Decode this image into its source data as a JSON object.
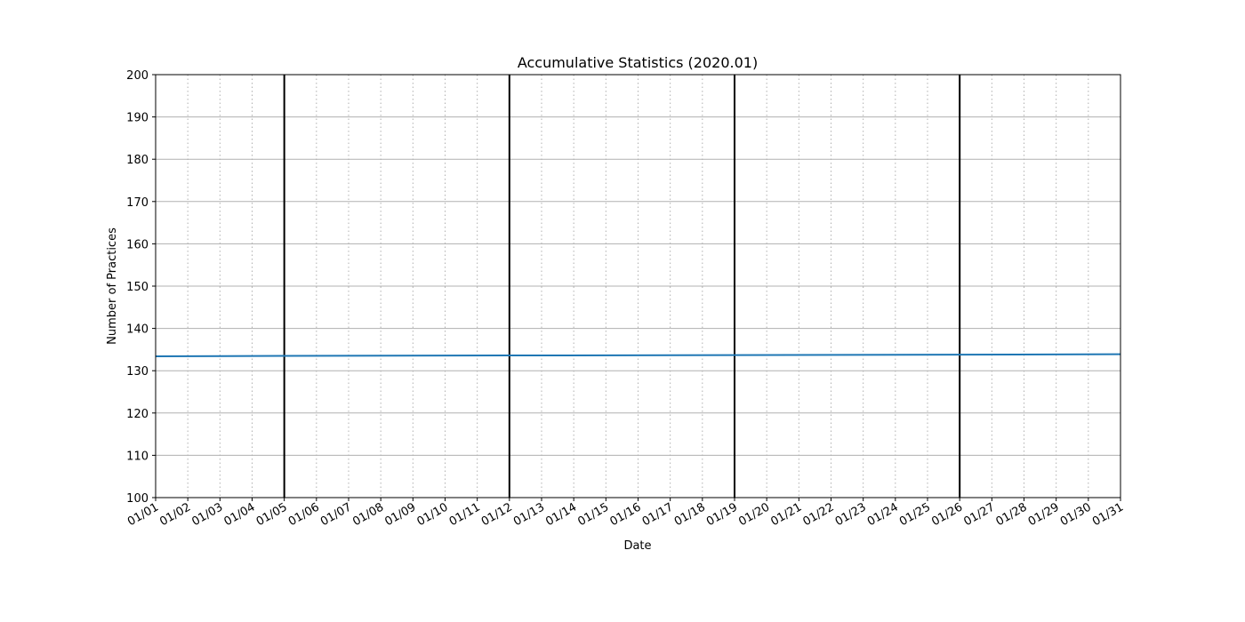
{
  "chart_data": {
    "type": "line",
    "title": "Accumulative Statistics (2020.01)",
    "xlabel": "Date",
    "ylabel": "Number of Practices",
    "ylim": [
      100,
      200
    ],
    "yticks": [
      100,
      110,
      120,
      130,
      140,
      150,
      160,
      170,
      180,
      190,
      200
    ],
    "xticks": [
      "01/01",
      "01/02",
      "01/03",
      "01/04",
      "01/05",
      "01/06",
      "01/07",
      "01/08",
      "01/09",
      "01/10",
      "01/11",
      "01/12",
      "01/13",
      "01/14",
      "01/15",
      "01/16",
      "01/17",
      "01/18",
      "01/19",
      "01/20",
      "01/21",
      "01/22",
      "01/23",
      "01/24",
      "01/25",
      "01/26",
      "01/27",
      "01/28",
      "01/29",
      "01/30",
      "01/31"
    ],
    "week_boundaries": [
      "01/05",
      "01/12",
      "01/19",
      "01/26"
    ],
    "grid": {
      "y": "solid",
      "x": "dotted"
    },
    "series": [
      {
        "color": "#1f77b4",
        "x": [
          "01/01",
          "01/05",
          "01/12",
          "01/19",
          "01/26",
          "01/31"
        ],
        "y": [
          133.4,
          133.5,
          133.6,
          133.7,
          133.8,
          133.9
        ]
      }
    ],
    "colors": {
      "line": "#1f77b4",
      "grid": "#b0b0b0",
      "week_line": "#000000"
    }
  }
}
